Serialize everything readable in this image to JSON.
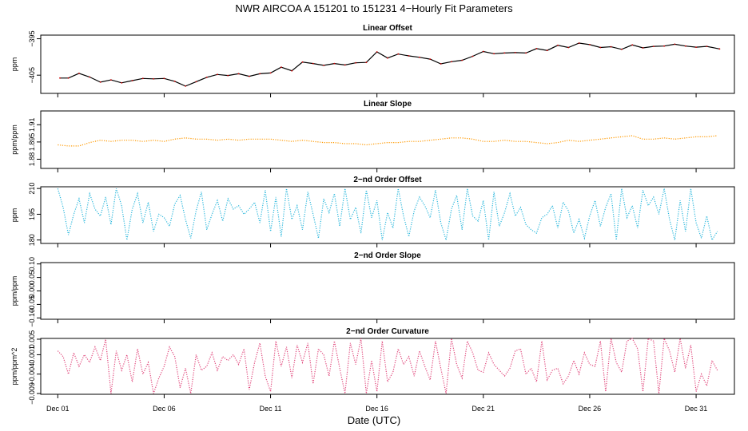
{
  "title": "NWR   AIRCOA A   151201 to 151231   4−Hourly Fit Parameters",
  "xlabel": "Date (UTC)",
  "x_ticks": [
    "Dec 01",
    "Dec 06",
    "Dec 11",
    "Dec 16",
    "Dec 21",
    "Dec 26",
    "Dec 31"
  ],
  "x_tick_days": [
    1,
    6,
    11,
    16,
    21,
    26,
    31
  ],
  "x_range_days": [
    0.2,
    32.8
  ],
  "chart_data": [
    {
      "type": "line",
      "title": "Linear Offset",
      "ylabel": "ppm",
      "ylim": [
        -410,
        -394
      ],
      "y_ticks": [
        -395,
        -405
      ],
      "y_tick_labels": [
        "−395",
        "−405"
      ],
      "color": "#000000",
      "marker_color": "#cc0000",
      "style": "solid",
      "series": [
        {
          "name": "Linear Offset",
          "x": [
            1.1,
            1.5,
            2.0,
            2.5,
            3.0,
            3.5,
            4.0,
            4.5,
            5.0,
            5.5,
            6.0,
            6.5,
            7.0,
            7.5,
            8.0,
            8.5,
            9.0,
            9.5,
            10.0,
            10.5,
            11.0,
            11.5,
            12.0,
            12.5,
            13.0,
            13.5,
            14.0,
            14.5,
            15.0,
            15.5,
            16.0,
            16.5,
            17.0,
            17.5,
            18.0,
            18.5,
            19.0,
            19.5,
            20.0,
            20.5,
            21.0,
            21.5,
            22.0,
            22.5,
            23.0,
            23.5,
            24.0,
            24.5,
            25.0,
            25.5,
            26.0,
            26.5,
            27.0,
            27.5,
            28.0,
            28.5,
            29.0,
            29.5,
            30.0,
            30.5,
            31.0,
            31.5,
            32.1
          ],
          "y": [
            -405.8,
            -405.8,
            -404.5,
            -405.5,
            -406.9,
            -406.3,
            -407.1,
            -406.5,
            -405.9,
            -406.0,
            -405.9,
            -406.7,
            -408.0,
            -406.8,
            -405.6,
            -404.8,
            -405.1,
            -404.6,
            -405.3,
            -404.6,
            -404.4,
            -402.8,
            -403.8,
            -401.4,
            -401.8,
            -402.3,
            -401.8,
            -402.2,
            -401.6,
            -401.5,
            -398.6,
            -400.3,
            -399.2,
            -399.7,
            -400.1,
            -400.6,
            -401.9,
            -401.3,
            -400.9,
            -399.8,
            -398.5,
            -399.1,
            -398.9,
            -398.8,
            -398.9,
            -397.7,
            -398.2,
            -396.8,
            -397.4,
            -396.2,
            -396.6,
            -397.4,
            -397.2,
            -397.9,
            -396.7,
            -397.5,
            -397.1,
            -397.0,
            -396.5,
            -397.0,
            -397.3,
            -397.1,
            -397.8
          ]
        }
      ]
    },
    {
      "type": "line",
      "title": "Linear Slope",
      "ylabel": "ppm/ppm",
      "ylim": [
        1.872,
        1.922
      ],
      "y_ticks": [
        1.88,
        1.895,
        1.91
      ],
      "y_tick_labels": [
        "1.88",
        "1.895",
        "1.91"
      ],
      "color": "#ff9900",
      "style": "dotted",
      "series": [
        {
          "name": "Linear Slope",
          "x": [
            1.0,
            1.5,
            2.0,
            2.5,
            3.0,
            3.5,
            4.0,
            4.5,
            5.0,
            5.5,
            6.0,
            6.5,
            7.0,
            7.5,
            8.0,
            8.5,
            9.0,
            9.5,
            10.0,
            10.5,
            11.0,
            11.5,
            12.0,
            12.5,
            13.0,
            13.5,
            14.0,
            14.5,
            15.0,
            15.5,
            16.0,
            16.5,
            17.0,
            17.5,
            18.0,
            18.5,
            19.0,
            19.5,
            20.0,
            20.5,
            21.0,
            21.5,
            22.0,
            22.5,
            23.0,
            23.5,
            24.0,
            24.5,
            25.0,
            25.5,
            26.0,
            26.5,
            27.0,
            27.5,
            28.0,
            28.5,
            29.0,
            29.5,
            30.0,
            30.5,
            31.0,
            31.5,
            32.0
          ],
          "y": [
            1.8925,
            1.8915,
            1.8915,
            1.8945,
            1.8965,
            1.8955,
            1.8965,
            1.8965,
            1.8955,
            1.8965,
            1.8955,
            1.8975,
            1.8985,
            1.8975,
            1.8975,
            1.8965,
            1.8975,
            1.8965,
            1.8975,
            1.8975,
            1.8975,
            1.8965,
            1.8955,
            1.8965,
            1.8955,
            1.8945,
            1.8945,
            1.8935,
            1.8935,
            1.8925,
            1.8935,
            1.8945,
            1.8945,
            1.8955,
            1.8955,
            1.8965,
            1.8975,
            1.8985,
            1.8985,
            1.8975,
            1.8955,
            1.8955,
            1.8965,
            1.8955,
            1.8955,
            1.8945,
            1.8935,
            1.8945,
            1.8965,
            1.8955,
            1.8965,
            1.8975,
            1.8985,
            1.8995,
            1.9005,
            1.8975,
            1.8975,
            1.8985,
            1.8975,
            1.8985,
            1.8995,
            1.8995,
            1.9005
          ]
        }
      ]
    },
    {
      "type": "line",
      "title": "2−nd Order Offset",
      "ylabel": "ppm",
      "ylim": [
        178,
        211
      ],
      "y_ticks": [
        180,
        195,
        210
      ],
      "y_tick_labels": [
        "180",
        "195",
        "210"
      ],
      "color": "#2ab7dc",
      "style": "dotted",
      "series": [
        {
          "name": "2-nd Order Offset",
          "x": [
            1.0,
            1.25,
            1.5,
            1.75,
            2.0,
            2.25,
            2.5,
            2.75,
            3.0,
            3.25,
            3.5,
            3.75,
            4.0,
            4.25,
            4.5,
            4.75,
            5.0,
            5.25,
            5.5,
            5.75,
            6.0,
            6.25,
            6.5,
            6.75,
            7.0,
            7.25,
            7.5,
            7.75,
            8.0,
            8.25,
            8.5,
            8.75,
            9.0,
            9.25,
            9.5,
            9.75,
            10.0,
            10.25,
            10.5,
            10.75,
            11.0,
            11.25,
            11.5,
            11.75,
            12.0,
            12.25,
            12.5,
            12.75,
            13.0,
            13.25,
            13.5,
            13.75,
            14.0,
            14.25,
            14.5,
            14.75,
            15.0,
            15.25,
            15.5,
            15.75,
            16.0,
            16.25,
            16.5,
            16.75,
            17.0,
            17.25,
            17.5,
            17.75,
            18.0,
            18.25,
            18.5,
            18.75,
            19.0,
            19.25,
            19.5,
            19.75,
            20.0,
            20.25,
            20.5,
            20.75,
            21.0,
            21.25,
            21.5,
            21.75,
            22.0,
            22.25,
            22.5,
            22.75,
            23.0,
            23.25,
            23.5,
            23.75,
            24.0,
            24.25,
            24.5,
            24.75,
            25.0,
            25.25,
            25.5,
            25.75,
            26.0,
            26.25,
            26.5,
            26.75,
            27.0,
            27.25,
            27.5,
            27.75,
            28.0,
            28.25,
            28.5,
            28.75,
            29.0,
            29.25,
            29.5,
            29.75,
            30.0,
            30.25,
            30.5,
            30.75,
            31.0,
            31.25,
            31.5,
            31.75,
            32.0
          ],
          "y": [
            210,
            199,
            183,
            195,
            204,
            190,
            207,
            198,
            194,
            205,
            189,
            210,
            200,
            180,
            198,
            207,
            190,
            202,
            185,
            195,
            193,
            188,
            201,
            206,
            192,
            181,
            197,
            208,
            186,
            195,
            203,
            191,
            204,
            198,
            200,
            195,
            198,
            202,
            190,
            209,
            185,
            205,
            182,
            210,
            192,
            200,
            186,
            208,
            195,
            181,
            204,
            196,
            207,
            188,
            210,
            192,
            199,
            184,
            209,
            193,
            203,
            180,
            196,
            187,
            210,
            194,
            182,
            197,
            205,
            200,
            193,
            209,
            190,
            180,
            198,
            206,
            186,
            210,
            194,
            191,
            203,
            180,
            208,
            188,
            196,
            207,
            194,
            199,
            189,
            186,
            184,
            193,
            195,
            200,
            187,
            202,
            197,
            184,
            192,
            181,
            194,
            203,
            188,
            199,
            207,
            180,
            210,
            193,
            200,
            187,
            209,
            200,
            205,
            195,
            210,
            192,
            180,
            203,
            185,
            210,
            190,
            181,
            194,
            180,
            185
          ]
        }
      ]
    },
    {
      "type": "line",
      "title": "2−nd Order Slope",
      "ylabel": "ppm/ppm",
      "ylim": [
        -0.105,
        0.105
      ],
      "y_ticks": [
        -0.1,
        -0.05,
        0.0,
        0.05,
        0.1
      ],
      "y_tick_labels": [
        "−0.10",
        "−0.05",
        "0.00",
        "0.05",
        "0.10"
      ],
      "color": "#000000",
      "style": "none",
      "series": []
    },
    {
      "type": "line",
      "title": "2−nd Order Curvature",
      "ylabel": "ppm/ppm^2",
      "ylim": [
        -0.0092,
        0.0052
      ],
      "y_ticks": [
        -0.009,
        -0.004,
        0.001,
        0.005
      ],
      "y_tick_labels": [
        "−0.009",
        "−0.004",
        "0.001",
        "0.005"
      ],
      "color": "#e0457a",
      "style": "dotted",
      "series": [
        {
          "name": "2-nd Order Curvature",
          "x": [
            1.0,
            1.25,
            1.5,
            1.75,
            2.0,
            2.25,
            2.5,
            2.75,
            3.0,
            3.25,
            3.5,
            3.75,
            4.0,
            4.25,
            4.5,
            4.75,
            5.0,
            5.25,
            5.5,
            5.75,
            6.0,
            6.25,
            6.5,
            6.75,
            7.0,
            7.25,
            7.5,
            7.75,
            8.0,
            8.25,
            8.5,
            8.75,
            9.0,
            9.25,
            9.5,
            9.75,
            10.0,
            10.25,
            10.5,
            10.75,
            11.0,
            11.25,
            11.5,
            11.75,
            12.0,
            12.25,
            12.5,
            12.75,
            13.0,
            13.25,
            13.5,
            13.75,
            14.0,
            14.25,
            14.5,
            14.75,
            15.0,
            15.25,
            15.5,
            15.75,
            16.0,
            16.25,
            16.5,
            16.75,
            17.0,
            17.25,
            17.5,
            17.75,
            18.0,
            18.25,
            18.5,
            18.75,
            19.0,
            19.25,
            19.5,
            19.75,
            20.0,
            20.25,
            20.5,
            20.75,
            21.0,
            21.25,
            21.5,
            21.75,
            22.0,
            22.25,
            22.5,
            22.75,
            23.0,
            23.25,
            23.5,
            23.75,
            24.0,
            24.25,
            24.5,
            24.75,
            25.0,
            25.25,
            25.5,
            25.75,
            26.0,
            26.25,
            26.5,
            26.75,
            27.0,
            27.25,
            27.5,
            27.75,
            28.0,
            28.25,
            28.5,
            28.75,
            29.0,
            29.25,
            29.5,
            29.75,
            30.0,
            30.25,
            30.5,
            30.75,
            31.0,
            31.25,
            31.5,
            31.75,
            32.0
          ],
          "y": [
            0.002,
            0.0005,
            -0.004,
            0.0015,
            -0.002,
            0.001,
            -0.001,
            0.003,
            -0.0005,
            0.005,
            -0.009,
            0.002,
            -0.003,
            0.001,
            -0.006,
            0.0025,
            -0.004,
            -0.001,
            -0.009,
            -0.005,
            -0.002,
            0.003,
            0.0005,
            -0.0075,
            -0.0025,
            -0.009,
            0.001,
            -0.003,
            -0.002,
            0.0015,
            -0.003,
            0.0005,
            -0.0005,
            0.001,
            -0.0015,
            0.0025,
            -0.008,
            -0.001,
            0.004,
            -0.0045,
            -0.0085,
            0.0045,
            -0.002,
            0.003,
            -0.005,
            0.0035,
            -0.001,
            0.004,
            -0.0065,
            0.0025,
            0.001,
            -0.0045,
            0.0045,
            -0.0025,
            -0.009,
            0.004,
            -0.0015,
            0.0055,
            -0.009,
            -0.0005,
            -0.0085,
            0.0045,
            -0.006,
            -0.0035,
            0.0025,
            -0.0015,
            0.0005,
            -0.0045,
            0.002,
            -0.002,
            -0.0055,
            0.0045,
            -0.0025,
            -0.009,
            0.0055,
            -0.0015,
            -0.005,
            0.0045,
            0.0015,
            -0.003,
            -0.0035,
            0.0015,
            -0.0015,
            -0.003,
            -0.0045,
            -0.0025,
            0.002,
            0.0025,
            -0.004,
            -0.0025,
            -0.006,
            0.0045,
            -0.0055,
            -0.003,
            -0.0025,
            -0.0065,
            -0.0045,
            -0.0005,
            -0.004,
            0.0015,
            -0.0015,
            -0.002,
            0.0045,
            -0.0085,
            0.0055,
            -0.001,
            -0.0035,
            0.0045,
            0.0055,
            0.0025,
            -0.0085,
            0.0055,
            0.0045,
            -0.009,
            0.0055,
            0.002,
            -0.0035,
            0.0055,
            -0.0025,
            0.0035,
            -0.0085,
            -0.004,
            -0.007,
            -0.0005,
            -0.003
          ]
        }
      ]
    }
  ]
}
